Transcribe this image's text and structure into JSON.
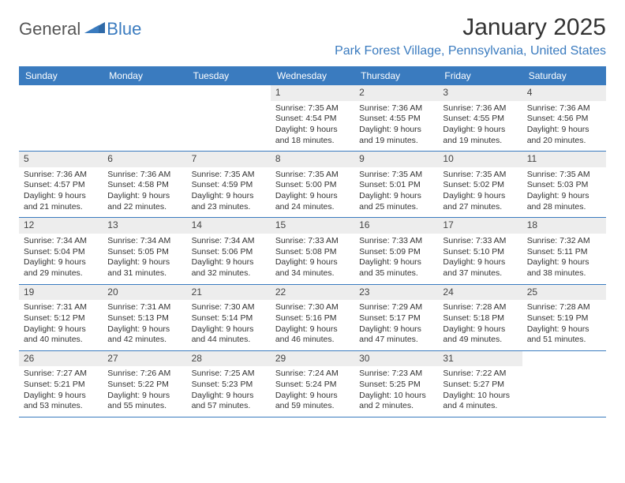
{
  "logo": {
    "word1": "General",
    "word2": "Blue"
  },
  "title": "January 2025",
  "location": "Park Forest Village, Pennsylvania, United States",
  "colors": {
    "accent": "#3a7bbf",
    "header_bg": "#3a7bbf",
    "row_shade": "#ededed",
    "text": "#333333"
  },
  "dow": [
    "Sunday",
    "Monday",
    "Tuesday",
    "Wednesday",
    "Thursday",
    "Friday",
    "Saturday"
  ],
  "weeks": [
    [
      null,
      null,
      null,
      {
        "n": "1",
        "sr": "7:35 AM",
        "ss": "4:54 PM",
        "dl": "9 hours and 18 minutes."
      },
      {
        "n": "2",
        "sr": "7:36 AM",
        "ss": "4:55 PM",
        "dl": "9 hours and 19 minutes."
      },
      {
        "n": "3",
        "sr": "7:36 AM",
        "ss": "4:55 PM",
        "dl": "9 hours and 19 minutes."
      },
      {
        "n": "4",
        "sr": "7:36 AM",
        "ss": "4:56 PM",
        "dl": "9 hours and 20 minutes."
      }
    ],
    [
      {
        "n": "5",
        "sr": "7:36 AM",
        "ss": "4:57 PM",
        "dl": "9 hours and 21 minutes."
      },
      {
        "n": "6",
        "sr": "7:36 AM",
        "ss": "4:58 PM",
        "dl": "9 hours and 22 minutes."
      },
      {
        "n": "7",
        "sr": "7:35 AM",
        "ss": "4:59 PM",
        "dl": "9 hours and 23 minutes."
      },
      {
        "n": "8",
        "sr": "7:35 AM",
        "ss": "5:00 PM",
        "dl": "9 hours and 24 minutes."
      },
      {
        "n": "9",
        "sr": "7:35 AM",
        "ss": "5:01 PM",
        "dl": "9 hours and 25 minutes."
      },
      {
        "n": "10",
        "sr": "7:35 AM",
        "ss": "5:02 PM",
        "dl": "9 hours and 27 minutes."
      },
      {
        "n": "11",
        "sr": "7:35 AM",
        "ss": "5:03 PM",
        "dl": "9 hours and 28 minutes."
      }
    ],
    [
      {
        "n": "12",
        "sr": "7:34 AM",
        "ss": "5:04 PM",
        "dl": "9 hours and 29 minutes."
      },
      {
        "n": "13",
        "sr": "7:34 AM",
        "ss": "5:05 PM",
        "dl": "9 hours and 31 minutes."
      },
      {
        "n": "14",
        "sr": "7:34 AM",
        "ss": "5:06 PM",
        "dl": "9 hours and 32 minutes."
      },
      {
        "n": "15",
        "sr": "7:33 AM",
        "ss": "5:08 PM",
        "dl": "9 hours and 34 minutes."
      },
      {
        "n": "16",
        "sr": "7:33 AM",
        "ss": "5:09 PM",
        "dl": "9 hours and 35 minutes."
      },
      {
        "n": "17",
        "sr": "7:33 AM",
        "ss": "5:10 PM",
        "dl": "9 hours and 37 minutes."
      },
      {
        "n": "18",
        "sr": "7:32 AM",
        "ss": "5:11 PM",
        "dl": "9 hours and 38 minutes."
      }
    ],
    [
      {
        "n": "19",
        "sr": "7:31 AM",
        "ss": "5:12 PM",
        "dl": "9 hours and 40 minutes."
      },
      {
        "n": "20",
        "sr": "7:31 AM",
        "ss": "5:13 PM",
        "dl": "9 hours and 42 minutes."
      },
      {
        "n": "21",
        "sr": "7:30 AM",
        "ss": "5:14 PM",
        "dl": "9 hours and 44 minutes."
      },
      {
        "n": "22",
        "sr": "7:30 AM",
        "ss": "5:16 PM",
        "dl": "9 hours and 46 minutes."
      },
      {
        "n": "23",
        "sr": "7:29 AM",
        "ss": "5:17 PM",
        "dl": "9 hours and 47 minutes."
      },
      {
        "n": "24",
        "sr": "7:28 AM",
        "ss": "5:18 PM",
        "dl": "9 hours and 49 minutes."
      },
      {
        "n": "25",
        "sr": "7:28 AM",
        "ss": "5:19 PM",
        "dl": "9 hours and 51 minutes."
      }
    ],
    [
      {
        "n": "26",
        "sr": "7:27 AM",
        "ss": "5:21 PM",
        "dl": "9 hours and 53 minutes."
      },
      {
        "n": "27",
        "sr": "7:26 AM",
        "ss": "5:22 PM",
        "dl": "9 hours and 55 minutes."
      },
      {
        "n": "28",
        "sr": "7:25 AM",
        "ss": "5:23 PM",
        "dl": "9 hours and 57 minutes."
      },
      {
        "n": "29",
        "sr": "7:24 AM",
        "ss": "5:24 PM",
        "dl": "9 hours and 59 minutes."
      },
      {
        "n": "30",
        "sr": "7:23 AM",
        "ss": "5:25 PM",
        "dl": "10 hours and 2 minutes."
      },
      {
        "n": "31",
        "sr": "7:22 AM",
        "ss": "5:27 PM",
        "dl": "10 hours and 4 minutes."
      },
      null
    ]
  ],
  "labels": {
    "sunrise": "Sunrise: ",
    "sunset": "Sunset: ",
    "daylight": "Daylight: "
  }
}
